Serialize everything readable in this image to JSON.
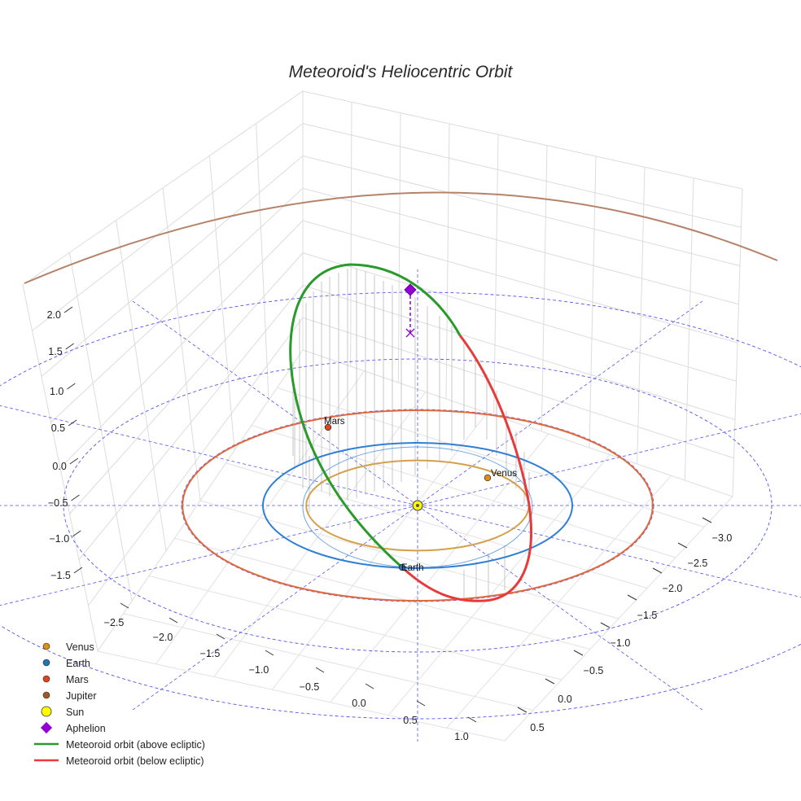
{
  "chart_data": {
    "type": "3d-orbit",
    "title": "Meteoroid's Heliocentric Orbit",
    "z_ticks": [
      "2.0",
      "1.5",
      "1.0",
      "0.5",
      "0.0",
      "−0.5",
      "−1.0",
      "−1.5"
    ],
    "x_ticks": [
      "−2.5",
      "−2.0",
      "−1.5",
      "−1.0",
      "−0.5",
      "0.0",
      "0.5",
      "1.0"
    ],
    "y_ticks": [
      "−3.0",
      "−2.5",
      "−2.0",
      "−1.5",
      "−1.0",
      "−0.5",
      "0.0",
      "0.5"
    ],
    "planets": [
      {
        "name": "Venus",
        "orbit_radius_au": 0.72,
        "color": "#d4a04a",
        "marker_color": "#e08e16",
        "shown_label": "Venus"
      },
      {
        "name": "Earth",
        "orbit_radius_au": 1.0,
        "color": "#2f7fd6",
        "marker_color": "#1f77b4",
        "shown_label": "Earth"
      },
      {
        "name": "Mars",
        "orbit_radius_au": 1.52,
        "color": "#e06a40",
        "marker_color": "#d9471f",
        "shown_label": "Mars"
      },
      {
        "name": "Jupiter",
        "orbit_radius_au": 5.2,
        "color": "#b5836a",
        "marker_color": "#9c5a2c",
        "shown_label": ""
      }
    ],
    "sun": {
      "name": "Sun",
      "color": "#ffff00"
    },
    "aphelion": {
      "name": "Aphelion",
      "color": "#9400d3"
    },
    "meteoroid": {
      "above_label": "Meteoroid orbit (above ecliptic)",
      "below_label": "Meteoroid orbit (below ecliptic)",
      "above_color": "#2a9a2a",
      "below_color": "#e83a3a"
    },
    "grid": true,
    "legend_position": "bottom-left"
  }
}
